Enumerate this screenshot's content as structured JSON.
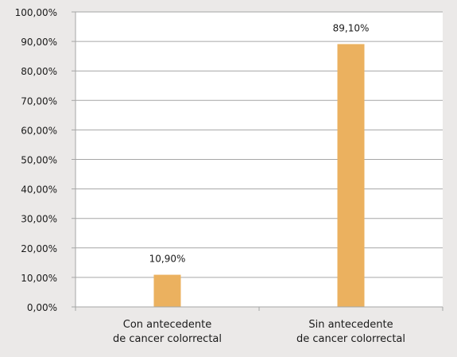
{
  "chart_data": {
    "type": "bar",
    "categories": [
      [
        "Con antecedente",
        "de cancer colorrectal"
      ],
      [
        "Sin antecedente",
        "de cancer colorrectal"
      ]
    ],
    "values": [
      10.9,
      89.1
    ],
    "data_labels": [
      "10,90%",
      "89,10%"
    ],
    "y_tick_labels": [
      "0,00%",
      "10,00%",
      "20,00%",
      "30,00%",
      "40,00%",
      "50,00%",
      "60,00%",
      "70,00%",
      "80,00%",
      "90,00%",
      "100,00%"
    ],
    "ylim": [
      0,
      100
    ],
    "grid": true,
    "colors": {
      "bar": "#ebb15f",
      "background": "#ebe9e8",
      "plot_area": "#ffffff",
      "grid": "#a6a6a6"
    }
  }
}
